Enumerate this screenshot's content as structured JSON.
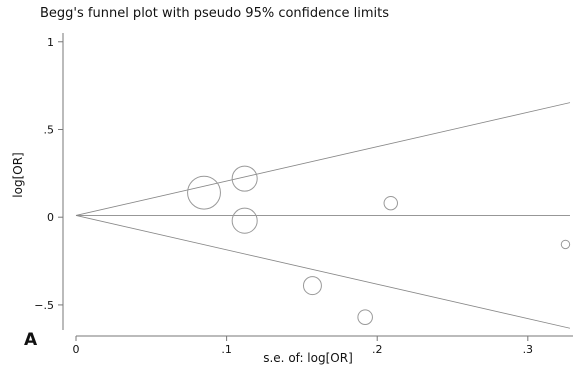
{
  "panel_label": "A",
  "chart_data": {
    "type": "scatter",
    "title": "Begg's funnel plot with pseudo 95% confidence limits",
    "xlabel": "s.e. of: log[OR]",
    "ylabel": "log[OR]",
    "xlim": [
      0,
      0.33
    ],
    "ylim": [
      -0.7,
      1.05
    ],
    "x_ticks": [
      {
        "value": 0,
        "label": "0"
      },
      {
        "value": 0.1,
        "label": ".1"
      },
      {
        "value": 0.2,
        "label": ".2"
      },
      {
        "value": 0.3,
        "label": ".3"
      }
    ],
    "y_ticks": [
      {
        "value": 1,
        "label": "1"
      },
      {
        "value": 0.5,
        "label": ".5"
      },
      {
        "value": 0,
        "label": "0"
      },
      {
        "value": -0.5,
        "label": "−.5"
      }
    ],
    "pooled_estimate": 0.01,
    "confidence_limits": {
      "z": 1.96,
      "se_max": 0.328
    },
    "points": [
      {
        "se": 0.085,
        "log_or": 0.14,
        "weight": 138
      },
      {
        "se": 0.112,
        "log_or": 0.22,
        "weight": 80
      },
      {
        "se": 0.112,
        "log_or": -0.02,
        "weight": 80
      },
      {
        "se": 0.157,
        "log_or": -0.39,
        "weight": 41
      },
      {
        "se": 0.192,
        "log_or": -0.57,
        "weight": 27
      },
      {
        "se": 0.209,
        "log_or": 0.08,
        "weight": 23
      },
      {
        "se": 0.325,
        "log_or": -0.155,
        "weight": 9
      }
    ]
  }
}
